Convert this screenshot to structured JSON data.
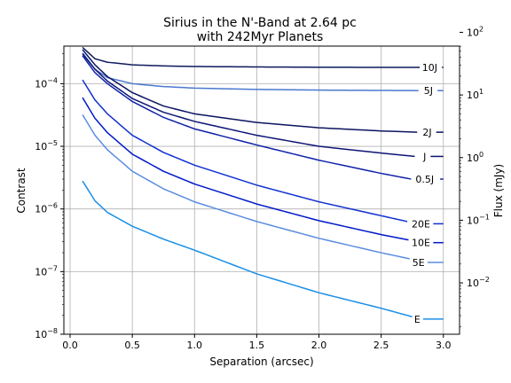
{
  "chart_data": {
    "type": "line",
    "title_line1": "Sirius in the N'-Band at 2.64 pc",
    "title_line2": "with 242Myr Planets",
    "xlabel": "Separation (arcsec)",
    "ylabel": "Contrast",
    "y2label": "Flux (mJy)",
    "xlim": [
      -0.05,
      3.13
    ],
    "ylim_log": [
      -8.0,
      -3.4
    ],
    "y2lim_log": [
      -2.82,
      1.78
    ],
    "y_scale": "log",
    "grid": true,
    "x_ticks": [
      {
        "value": 0.0,
        "label": "0.0"
      },
      {
        "value": 0.5,
        "label": "0.5"
      },
      {
        "value": 1.0,
        "label": "1.0"
      },
      {
        "value": 1.5,
        "label": "1.5"
      },
      {
        "value": 2.0,
        "label": "2.0"
      },
      {
        "value": 2.5,
        "label": "2.5"
      },
      {
        "value": 3.0,
        "label": "3.0"
      }
    ],
    "y_ticks": [
      {
        "exp": -8,
        "base": "10",
        "sup": "−8"
      },
      {
        "exp": -7,
        "base": "10",
        "sup": "−7"
      },
      {
        "exp": -6,
        "base": "10",
        "sup": "−6"
      },
      {
        "exp": -5,
        "base": "10",
        "sup": "−5"
      },
      {
        "exp": -4,
        "base": "10",
        "sup": "−4"
      }
    ],
    "y2_ticks": [
      {
        "exp": -2,
        "base": "10",
        "sup": "−2"
      },
      {
        "exp": -1,
        "base": "10",
        "sup": "−1"
      },
      {
        "exp": 0,
        "base": "10",
        "sup": "0"
      },
      {
        "exp": 1,
        "base": "10",
        "sup": "1"
      },
      {
        "exp": 2,
        "base": "10",
        "sup": "2"
      }
    ],
    "series": [
      {
        "name": "10J",
        "color": "#0d1a5c",
        "x": [
          0.1,
          0.2,
          0.3,
          0.5,
          0.75,
          1.0,
          1.5,
          2.0,
          2.5,
          2.81
        ],
        "y": [
          0.00038,
          0.00025,
          0.00022,
          0.0002,
          0.000192,
          0.000188,
          0.000185,
          0.000183,
          0.000182,
          0.000182
        ],
        "label_x": 2.89,
        "label_y": 0.000182,
        "line_end_x": 3.0
      },
      {
        "name": "5J",
        "color": "#4a78d0",
        "x": [
          0.1,
          0.2,
          0.3,
          0.5,
          0.75,
          1.0,
          1.5,
          2.0,
          2.5,
          2.8
        ],
        "y": [
          0.00031,
          0.00017,
          0.000125,
          0.0001,
          9e-05,
          8.5e-05,
          8.1e-05,
          7.9e-05,
          7.8e-05,
          7.75e-05
        ],
        "label_x": 2.88,
        "label_y": 7.75e-05,
        "line_end_x": 3.0
      },
      {
        "name": "2J",
        "color": "#0a1460",
        "x": [
          0.1,
          0.2,
          0.3,
          0.5,
          0.75,
          1.0,
          1.5,
          2.0,
          2.5,
          2.79
        ],
        "y": [
          0.00035,
          0.0002,
          0.00013,
          7.2e-05,
          4.4e-05,
          3.3e-05,
          2.4e-05,
          1.98e-05,
          1.76e-05,
          1.68e-05
        ],
        "label_x": 2.87,
        "label_y": 1.68e-05,
        "line_end_x": 3.0
      },
      {
        "name": "J",
        "color": "#0c1575",
        "x": [
          0.1,
          0.2,
          0.3,
          0.5,
          0.75,
          1.0,
          1.5,
          2.0,
          2.5,
          2.77
        ],
        "y": [
          0.0003,
          0.00017,
          0.00011,
          5.8e-05,
          3.5e-05,
          2.5e-05,
          1.5e-05,
          1e-05,
          7.8e-06,
          6.9e-06
        ],
        "label_x": 2.85,
        "label_y": 6.9e-06,
        "line_end_x": 3.0
      },
      {
        "name": "0.5J",
        "color": "#0f22a8",
        "x": [
          0.1,
          0.2,
          0.3,
          0.5,
          0.75,
          1.0,
          1.5,
          2.0,
          2.5,
          2.74
        ],
        "y": [
          0.00028,
          0.00015,
          0.0001,
          5.2e-05,
          2.9e-05,
          1.9e-05,
          1.05e-05,
          6e-06,
          3.7e-06,
          3e-06
        ],
        "label_x": 2.85,
        "label_y": 3e-06,
        "line_end_x": 3.0
      },
      {
        "name": "20E",
        "color": "#1030d0",
        "x": [
          0.1,
          0.2,
          0.3,
          0.5,
          0.75,
          1.0,
          1.5,
          2.0,
          2.5,
          2.71
        ],
        "y": [
          0.000115,
          5.5e-05,
          3.3e-05,
          1.5e-05,
          8e-06,
          5e-06,
          2.4e-06,
          1.3e-06,
          7.8e-07,
          6.3e-07
        ],
        "label_x": 2.82,
        "label_y": 5.8e-07,
        "line_end_x": 3.0
      },
      {
        "name": "10E",
        "color": "#0018c8",
        "x": [
          0.1,
          0.2,
          0.3,
          0.5,
          0.75,
          1.0,
          1.5,
          2.0,
          2.5,
          2.72
        ],
        "y": [
          6e-05,
          2.8e-05,
          1.65e-05,
          7.5e-06,
          4e-06,
          2.5e-06,
          1.2e-06,
          6.5e-07,
          3.9e-07,
          3.2e-07
        ],
        "label_x": 2.82,
        "label_y": 2.9e-07,
        "line_end_x": 3.0
      },
      {
        "name": "5E",
        "color": "#5b8de0",
        "x": [
          0.1,
          0.2,
          0.3,
          0.5,
          0.75,
          1.0,
          1.5,
          2.0,
          2.5,
          2.73
        ],
        "y": [
          3.2e-05,
          1.5e-05,
          8.8e-06,
          4e-06,
          2.1e-06,
          1.3e-06,
          6.3e-07,
          3.4e-07,
          2e-07,
          1.6e-07
        ],
        "label_x": 2.8,
        "label_y": 1.4e-07,
        "line_end_x": 3.0
      },
      {
        "name": "E",
        "color": "#1a8fe6",
        "x": [
          0.1,
          0.2,
          0.3,
          0.5,
          0.75,
          1.0,
          1.5,
          2.0,
          2.5,
          2.75
        ],
        "y": [
          2.8e-06,
          1.35e-06,
          8.8e-07,
          5.3e-07,
          3.3e-07,
          2.2e-07,
          9.2e-08,
          4.6e-08,
          2.6e-08,
          1.9e-08
        ],
        "label_x": 2.79,
        "label_y": 1.75e-08,
        "line_end_x": 3.0
      }
    ]
  }
}
